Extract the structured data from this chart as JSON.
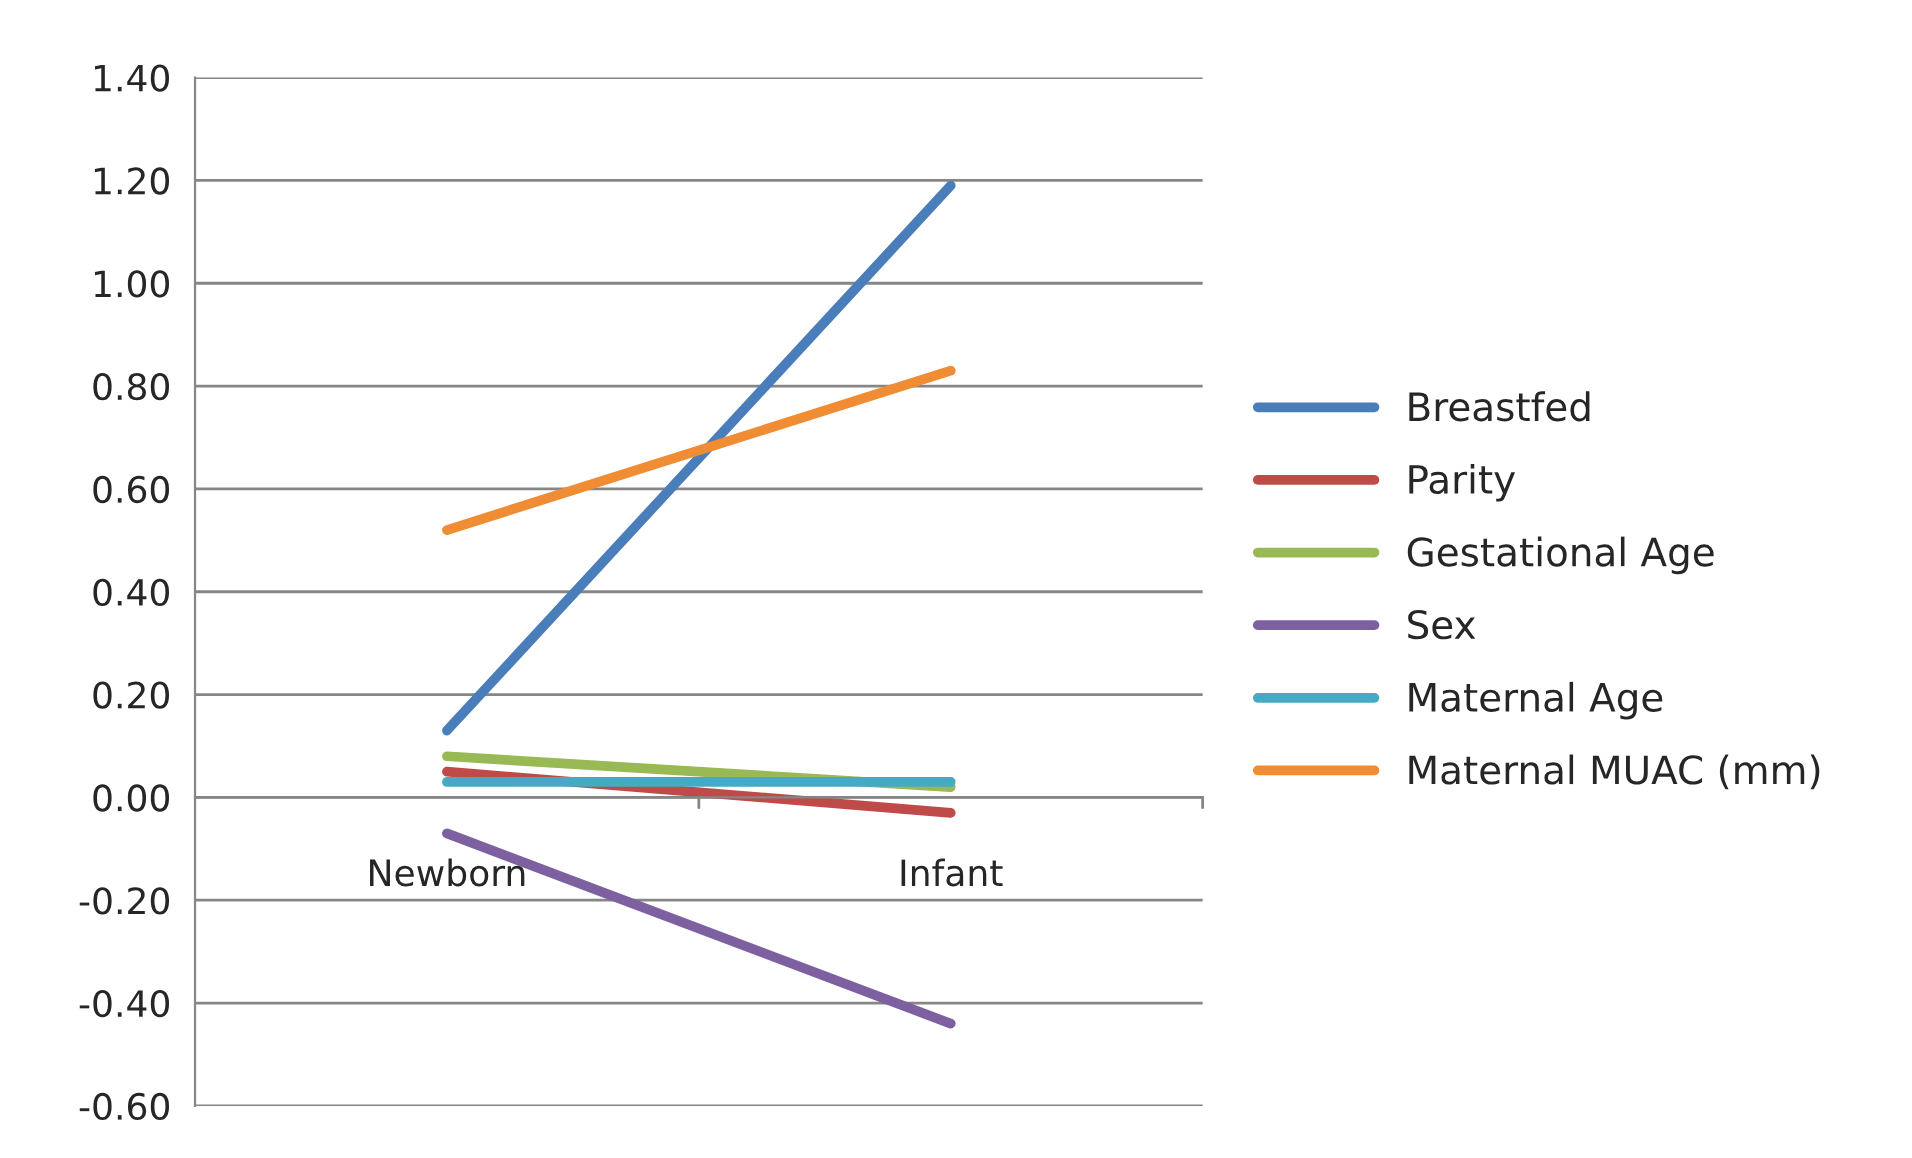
{
  "chart_data": {
    "type": "line",
    "categories": [
      "Newborn",
      "Infant"
    ],
    "series": [
      {
        "name": "Breastfed",
        "color": "#4a7ebb",
        "values": [
          0.13,
          1.19
        ]
      },
      {
        "name": "Parity",
        "color": "#be4b48",
        "values": [
          0.05,
          -0.03
        ]
      },
      {
        "name": "Gestational Age",
        "color": "#98b954",
        "values": [
          0.08,
          0.02
        ]
      },
      {
        "name": "Sex",
        "color": "#7d60a0",
        "values": [
          -0.07,
          -0.44
        ]
      },
      {
        "name": "Maternal Age",
        "color": "#46aac5",
        "values": [
          0.03,
          0.03
        ]
      },
      {
        "name": "Maternal MUAC (mm)",
        "color": "#f08c33",
        "values": [
          0.52,
          0.83
        ]
      }
    ],
    "ylim": [
      -0.6,
      1.4
    ],
    "yticks": [
      {
        "value": -0.6,
        "label": "-0.60"
      },
      {
        "value": -0.4,
        "label": "-0.40"
      },
      {
        "value": -0.2,
        "label": "-0.20"
      },
      {
        "value": 0,
        "label": "0.00"
      },
      {
        "value": 0.2,
        "label": "0.20"
      },
      {
        "value": 0.4,
        "label": "0.40"
      },
      {
        "value": 0.6,
        "label": "0.60"
      },
      {
        "value": 0.8,
        "label": "0.80"
      },
      {
        "value": 1.0,
        "label": "1.00"
      },
      {
        "value": 1.2,
        "label": "1.20"
      },
      {
        "value": 1.4,
        "label": "1.40"
      }
    ],
    "grid": "y",
    "legend": "right",
    "marker": "none",
    "line_style": "solid"
  }
}
